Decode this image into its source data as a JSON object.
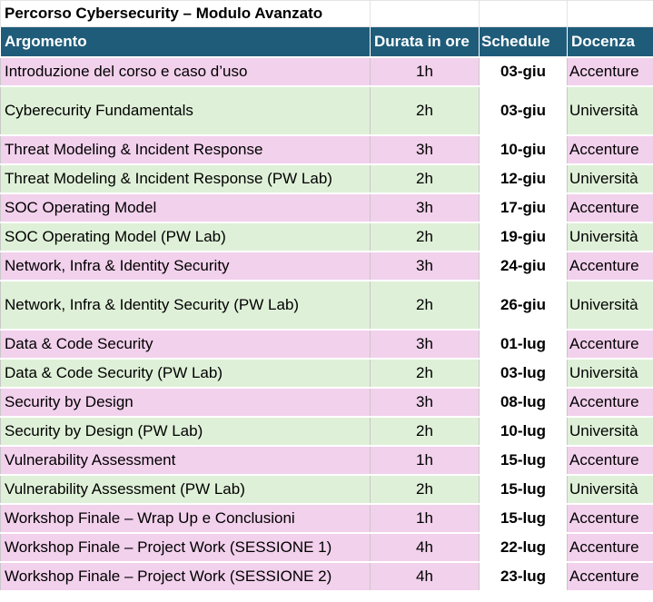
{
  "title": "Percorso Cybersecurity – Modulo Avanzato",
  "columns": {
    "argomento": "Argomento",
    "durata": "Durata in ore",
    "schedule": "Schedule",
    "docenza": "Docenza"
  },
  "rows": [
    {
      "argomento": "Introduzione del corso e caso d’uso",
      "durata": "1h",
      "schedule": "03-giu",
      "docenza": "Accenture",
      "color": "pink"
    },
    {
      "argomento": "Cyberecurity Fundamentals",
      "durata": "2h",
      "schedule": "03-giu",
      "docenza": "Università",
      "color": "green"
    },
    {
      "argomento": "Threat Modeling & Incident Response",
      "durata": "3h",
      "schedule": "10-giu",
      "docenza": "Accenture",
      "color": "pink"
    },
    {
      "argomento": "Threat Modeling & Incident Response (PW Lab)",
      "durata": "2h",
      "schedule": "12-giu",
      "docenza": "Università",
      "color": "green"
    },
    {
      "argomento": "SOC Operating Model",
      "durata": "3h",
      "schedule": "17-giu",
      "docenza": "Accenture",
      "color": "pink"
    },
    {
      "argomento": "SOC Operating Model (PW Lab)",
      "durata": "2h",
      "schedule": "19-giu",
      "docenza": "Università",
      "color": "green"
    },
    {
      "argomento": "Network, Infra & Identity Security",
      "durata": "3h",
      "schedule": "24-giu",
      "docenza": "Accenture",
      "color": "pink"
    },
    {
      "argomento": "Network, Infra & Identity Security (PW Lab)",
      "durata": "2h",
      "schedule": "26-giu",
      "docenza": "Università",
      "color": "green"
    },
    {
      "argomento": "Data & Code Security",
      "durata": "3h",
      "schedule": "01-lug",
      "docenza": "Accenture",
      "color": "pink"
    },
    {
      "argomento": "Data & Code Security (PW Lab)",
      "durata": "2h",
      "schedule": "03-lug",
      "docenza": "Università",
      "color": "green"
    },
    {
      "argomento": "Security by Design",
      "durata": "3h",
      "schedule": "08-lug",
      "docenza": "Accenture",
      "color": "pink"
    },
    {
      "argomento": "Security by Design (PW Lab)",
      "durata": "2h",
      "schedule": "10-lug",
      "docenza": "Università",
      "color": "green"
    },
    {
      "argomento": "Vulnerability Assessment",
      "durata": "1h",
      "schedule": "15-lug",
      "docenza": "Accenture",
      "color": "pink"
    },
    {
      "argomento": "Vulnerability Assessment (PW Lab)",
      "durata": "2h",
      "schedule": "15-lug",
      "docenza": "Università",
      "color": "green"
    },
    {
      "argomento": "Workshop Finale – Wrap Up e Conclusioni",
      "durata": "1h",
      "schedule": "15-lug",
      "docenza": "Accenture",
      "color": "pink"
    },
    {
      "argomento": "Workshop Finale – Project Work (SESSIONE 1)",
      "durata": "4h",
      "schedule": "22-lug",
      "docenza": "Accenture",
      "color": "pink"
    },
    {
      "argomento": "Workshop Finale – Project Work (SESSIONE 2)",
      "durata": "4h",
      "schedule": "23-lug",
      "docenza": "Accenture",
      "color": "pink"
    }
  ],
  "colors": {
    "header_bg": "#1f5c7a",
    "pink": "#f2d1ec",
    "green": "#dff0d8"
  }
}
